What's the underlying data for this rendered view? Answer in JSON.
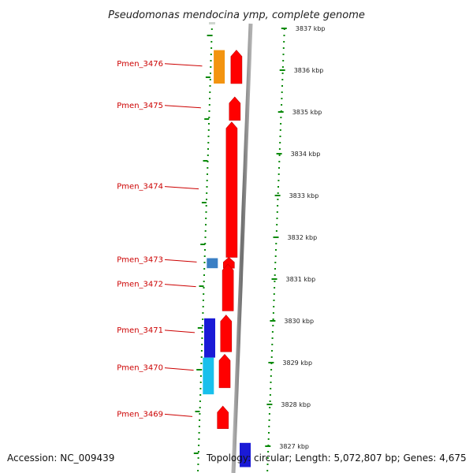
{
  "title": "Pseudomonas mendocina ymp, complete genome",
  "scale": {
    "ticks": [
      {
        "kbp": 3837,
        "label": "3837 kbp"
      },
      {
        "kbp": 3836,
        "label": "3836 kbp"
      },
      {
        "kbp": 3835,
        "label": "3835 kbp"
      },
      {
        "kbp": 3834,
        "label": "3834 kbp"
      },
      {
        "kbp": 3833,
        "label": "3833 kbp"
      },
      {
        "kbp": 3832,
        "label": "3832 kbp"
      },
      {
        "kbp": 3831,
        "label": "3831 kbp"
      },
      {
        "kbp": 3830,
        "label": "3830 kbp"
      },
      {
        "kbp": 3829,
        "label": "3829 kbp"
      },
      {
        "kbp": 3828,
        "label": "3828 kbp"
      },
      {
        "kbp": 3827,
        "label": "3827 kbp"
      }
    ]
  },
  "genes": [
    {
      "label": "Pmen_3476",
      "start_kbp": 3835.68,
      "end_kbp": 3836.48
    },
    {
      "label": "Pmen_3475",
      "start_kbp": 3834.8,
      "end_kbp": 3835.36
    },
    {
      "label": "Pmen_3474",
      "start_kbp": 3831.52,
      "end_kbp": 3834.76
    },
    {
      "label": "Pmen_3473",
      "start_kbp": 3831.26,
      "end_kbp": 3831.52
    },
    {
      "label": "Pmen_3472",
      "start_kbp": 3830.24,
      "end_kbp": 3831.36
    },
    {
      "label": "Pmen_3471",
      "start_kbp": 3829.26,
      "end_kbp": 3830.14
    },
    {
      "label": "Pmen_3470",
      "start_kbp": 3828.4,
      "end_kbp": 3829.2
    },
    {
      "label": "Pmen_3469",
      "start_kbp": 3827.42,
      "end_kbp": 3827.96
    }
  ],
  "feature_blocks": [
    {
      "kbp_from": 3835.68,
      "kbp_to": 3836.48,
      "color": "#f39410"
    },
    {
      "kbp_from": 3831.26,
      "kbp_to": 3831.5,
      "color": "#3a7fc4"
    },
    {
      "kbp_from": 3829.12,
      "kbp_to": 3830.06,
      "color": "#1a1ad6"
    },
    {
      "kbp_from": 3828.24,
      "kbp_to": 3829.12,
      "color": "#18c0ec"
    }
  ],
  "bottom_block": {
    "kbp_from": 3826.5,
    "kbp_to": 3827.08,
    "color": "#1a1ad6"
  },
  "colors": {
    "cds": "#ff0000",
    "backbone": "#808080",
    "tick": "#0a8a0a",
    "gene_label": "#cc0000"
  },
  "footer": {
    "accession": "Accession: NC_009439",
    "topology": "Topology: circular; Length: 5,072,807 bp; Genes: 4,675"
  }
}
